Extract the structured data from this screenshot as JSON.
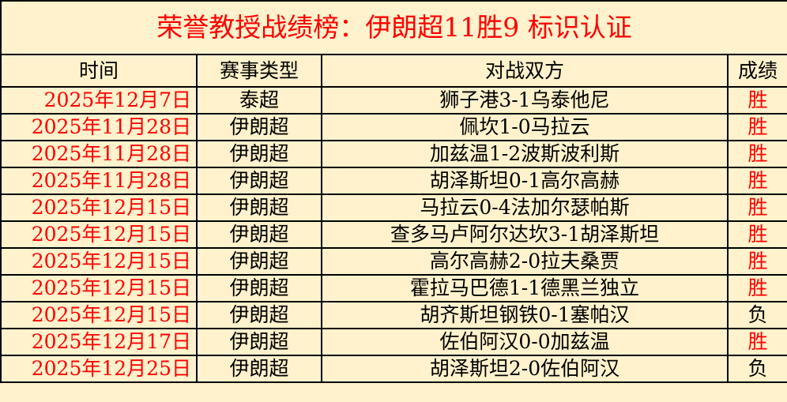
{
  "title": "荣誉教授战绩榜：伊朗超11胜9 标识认证",
  "headers": {
    "time": "时间",
    "type": "赛事类型",
    "match": "对战双方",
    "result": "成绩"
  },
  "colors": {
    "accent": "#ff0000",
    "background": "#fff2cc"
  },
  "rows": [
    {
      "date": "2025年12月7日",
      "type": "泰超",
      "match": "狮子港3-1乌泰他尼",
      "result": "胜"
    },
    {
      "date": "2025年11月28日",
      "type": "伊朗超",
      "match": "佩坎1-0马拉云",
      "result": "胜"
    },
    {
      "date": "2025年11月28日",
      "type": "伊朗超",
      "match": "加兹温1-2波斯波利斯",
      "result": "胜"
    },
    {
      "date": "2025年11月28日",
      "type": "伊朗超",
      "match": "胡泽斯坦0-1高尔高赫",
      "result": "胜"
    },
    {
      "date": "2025年12月15日",
      "type": "伊朗超",
      "match": "马拉云0-4法加尔瑟帕斯",
      "result": "胜"
    },
    {
      "date": "2025年12月15日",
      "type": "伊朗超",
      "match": "查多马卢阿尔达坎3-1胡泽斯坦",
      "result": "胜"
    },
    {
      "date": "2025年12月15日",
      "type": "伊朗超",
      "match": "高尔高赫2-0拉夫桑贾",
      "result": "胜"
    },
    {
      "date": "2025年12月15日",
      "type": "伊朗超",
      "match": "霍拉马巴德1-1德黑兰独立",
      "result": "胜"
    },
    {
      "date": "2025年12月15日",
      "type": "伊朗超",
      "match": "胡齐斯坦钢铁0-1塞帕汉",
      "result": "负"
    },
    {
      "date": "2025年12月17日",
      "type": "伊朗超",
      "match": "佐伯阿汉0-0加兹温",
      "result": "胜"
    },
    {
      "date": "2025年12月25日",
      "type": "伊朗超",
      "match": "胡泽斯坦2-0佐伯阿汉",
      "result": "负"
    }
  ]
}
